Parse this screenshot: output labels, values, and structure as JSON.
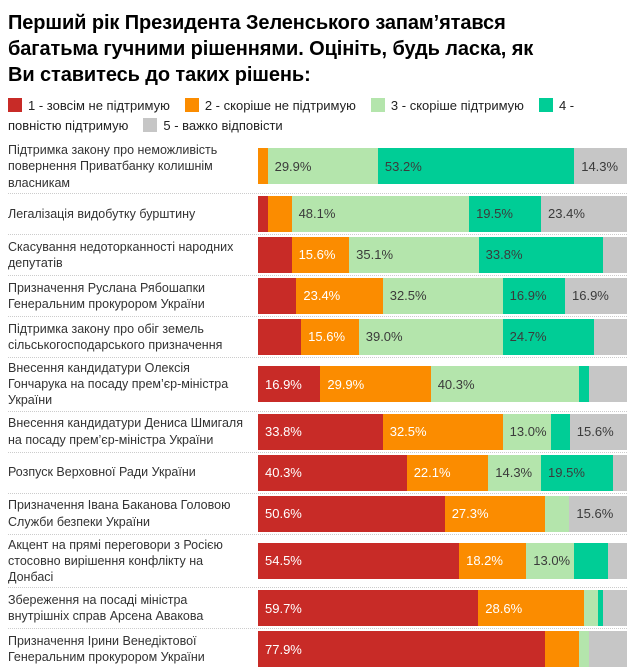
{
  "title": "Перший рік Президента Зеленського запам’ятався\nбагатьма гучними рішеннями. Оцініть, будь ласка, як\nВи ставитесь до таких рішень:",
  "value_suffix": "%",
  "colors": {
    "strongly_against": "#c82b27",
    "rather_against": "#fb8c00",
    "rather_support": "#b4e5ac",
    "fully_support": "#00cd96",
    "hard_to_say": "#c6c6c6",
    "dark_label": "#3b3b3b",
    "light_label": "#ffffff",
    "category_text": "#333333",
    "separator": "#cccccc"
  },
  "chart_data": {
    "type": "bar",
    "stacked": true,
    "orientation": "horizontal",
    "xlim": [
      0,
      100
    ],
    "grid": false,
    "legend_position": "top",
    "label_threshold": 13.0,
    "categories": [
      "Підтримка закону про неможливість повернення Приватбанку колишнім власникам",
      "Легалізація видобутку бурштину",
      "Скасування недоторканності народних депутатів",
      "Призначення Руслана Рябошапки Генеральним прокурором України",
      "Підтримка закону про обіг земель сільськогосподарського призначення",
      "Внесення кандидатури Олексія Гончарука на посаду прем’єр-міністра України",
      "Внесення кандидатури Дениса Шмигаля на посаду прем’єр-міністра України",
      "Розпуск Верховної Ради України",
      "Призначення Івана Баканова Головою Служби безпеки України",
      "Акцент на прямі переговори з Росією стосовно вирішення конфлікту на Донбасі",
      "Збереження на посаді міністра внутрішніх справ Арсена Авакова",
      "Призначення Ірини Венедіктової Генеральним прокурором України"
    ],
    "series": [
      {
        "name": "1 - зовсім не підтримую",
        "color": "#c82b27",
        "label_color": "#ffffff",
        "values": [
          0,
          2.6,
          9.1,
          10.4,
          11.7,
          16.9,
          33.8,
          40.3,
          50.6,
          54.5,
          59.7,
          77.9
        ]
      },
      {
        "name": "2 - скоріше не підтримую",
        "color": "#fb8c00",
        "label_color": "#ffffff",
        "values": [
          2.6,
          6.5,
          15.6,
          23.4,
          15.6,
          29.9,
          32.5,
          22.1,
          27.3,
          18.2,
          28.6,
          9.1
        ]
      },
      {
        "name": "3 - скоріше підтримую",
        "color": "#b4e5ac",
        "label_color": "#3b3b3b",
        "values": [
          29.9,
          48.1,
          35.1,
          32.5,
          39.0,
          40.3,
          13.0,
          14.3,
          6.5,
          13.0,
          3.9,
          2.6
        ]
      },
      {
        "name": "4 - повністю підтримую",
        "color": "#00cd96",
        "label_color": "#3b3b3b",
        "values": [
          53.2,
          19.5,
          33.8,
          16.9,
          24.7,
          2.6,
          5.2,
          19.5,
          0,
          9.1,
          1.3,
          0
        ]
      },
      {
        "name": "5 - важко відповісти",
        "color": "#c6c6c6",
        "label_color": "#3b3b3b",
        "values": [
          14.3,
          23.4,
          6.5,
          16.9,
          9.1,
          10.4,
          15.6,
          3.9,
          15.6,
          5.2,
          6.5,
          10.4
        ]
      }
    ]
  }
}
